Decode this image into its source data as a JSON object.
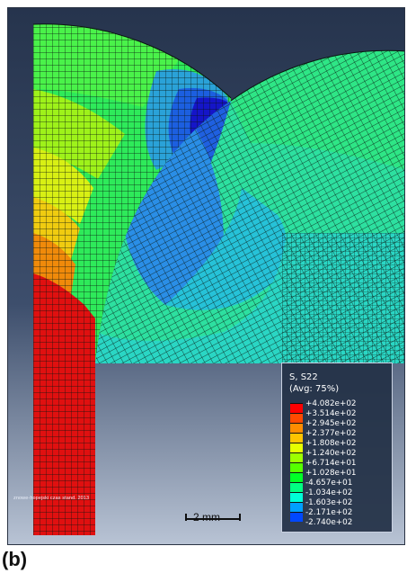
{
  "panel_label": "(b)",
  "watermark": "znowe-hopejski czas stand. 2013",
  "scale_bar": {
    "label": "2 mm"
  },
  "legend": {
    "title": "S, S22",
    "subtitle": "(Avg: 75%)",
    "entries": [
      {
        "label": "+4.082e+02",
        "color": "#ff0000"
      },
      {
        "label": "+3.514e+02",
        "color": "#ff4a00"
      },
      {
        "label": "+2.945e+02",
        "color": "#ff8c00"
      },
      {
        "label": "+2.377e+02",
        "color": "#ffc400"
      },
      {
        "label": "+1.808e+02",
        "color": "#e6ff00"
      },
      {
        "label": "+1.240e+02",
        "color": "#9dff00"
      },
      {
        "label": "+6.714e+01",
        "color": "#55ff00"
      },
      {
        "label": "+1.028e+01",
        "color": "#00ff27"
      },
      {
        "label": "-4.657e+01",
        "color": "#00ff82"
      },
      {
        "label": "-1.034e+02",
        "color": "#00ffd7"
      },
      {
        "label": "-1.603e+02",
        "color": "#00a0ff"
      },
      {
        "label": "-2.171e+02",
        "color": "#0048ff"
      },
      {
        "label": "-2.740e+02",
        "color": "#0000ff"
      }
    ]
  },
  "colors": {
    "background_top": "#2b3a54",
    "background_bottom": "#b6c2d4",
    "mesh_line": "#0b1a12"
  }
}
